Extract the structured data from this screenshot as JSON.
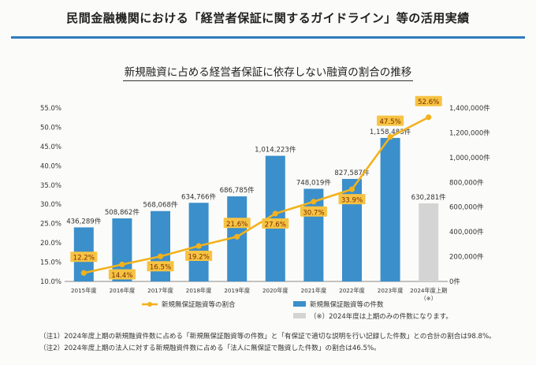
{
  "header": {
    "title": "民間金融機関における「経営者保証に関するガイドライン」等の活用実績",
    "subtitle": "新規融資に占める経営者保証に依存しない融資の割合の推移"
  },
  "chart_data": {
    "type": "bar",
    "categories": [
      "2015年度",
      "2016年度",
      "2017年度",
      "2018年度",
      "2019年度",
      "2020年度",
      "2021年度",
      "2022年度",
      "2023年度",
      "2024年度上期\n（※）"
    ],
    "series": [
      {
        "name": "新規無保証融資等の件数",
        "type": "bar",
        "axis": "right",
        "color": "#3b8fcb",
        "values": [
          436289,
          508862,
          568068,
          634766,
          686785,
          1014223,
          748019,
          827587,
          1158483,
          630281
        ],
        "labels": [
          "436,289件",
          "508,862件",
          "568,068件",
          "634,766件",
          "686,785件",
          "1,014,223件",
          "748,019件",
          "827,587件",
          "1,158,483件",
          "630,281件"
        ],
        "highlight_last_color": "#d4d4d4"
      },
      {
        "name": "新規無保証融資等の割合",
        "type": "line",
        "axis": "left",
        "color": "#f2b21c",
        "values": [
          12.2,
          14.4,
          16.5,
          19.2,
          21.6,
          27.6,
          30.7,
          33.9,
          47.5,
          52.6
        ],
        "labels": [
          "12.2%",
          "14.4%",
          "16.5%",
          "19.2%",
          "21.6%",
          "27.6%",
          "30.7%",
          "33.9%",
          "47.5%",
          "52.6%"
        ]
      }
    ],
    "y_left": {
      "min": 10,
      "max": 55,
      "ticks": [
        "10.0%",
        "15.0%",
        "20.0%",
        "25.0%",
        "30.0%",
        "35.0%",
        "40.0%",
        "45.0%",
        "50.0%",
        "55.0%"
      ]
    },
    "y_right": {
      "min": 0,
      "max": 1400000,
      "ticks": [
        "0件",
        "200,000件",
        "400,000件",
        "600,000件",
        "800,000件",
        "1,000,000件",
        "1,200,000件",
        "1,400,000件"
      ]
    },
    "legend": [
      {
        "label": "新規無保証融資等の割合",
        "kind": "line",
        "color": "#f2b21c"
      },
      {
        "label": "新規無保証融資等の件数",
        "kind": "bar",
        "color": "#3b8fcb"
      },
      {
        "label": "（※）2024年度は上期のみの件数になります。",
        "kind": "bar",
        "color": "#d4d4d4"
      }
    ],
    "grid": false
  },
  "notes": [
    "（注1）2024年度上期の新規融資件数に占める「新規無保証融資等の件数」と「有保証で適切な説明を行い記録した件数」との合計の割合は98.8%。",
    "（注2）2024年度上期の法人に対する新規融資件数に占める「法人に無保証で融資した件数」の割合は46.5%。"
  ]
}
